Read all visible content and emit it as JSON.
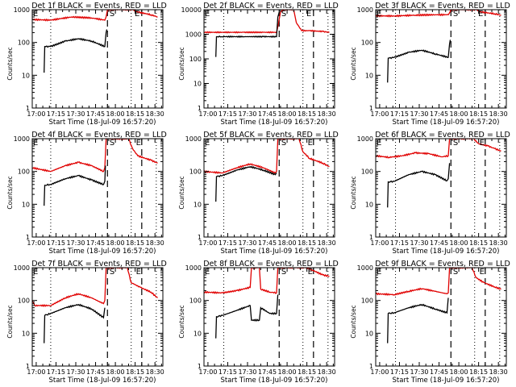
{
  "figure": {
    "start_time_label": "Start Time (18-Jul-09 16:57:20)",
    "ylabel": "Counts/sec",
    "colors": {
      "events": "#000000",
      "lld": "#e00000"
    }
  },
  "chart_data": [
    {
      "type": "line",
      "title": "Det 1f BLACK = Events, RED = LLD",
      "xlabel": "Start Time (18-Jul-09 16:57:20)",
      "ylabel": "Counts/sec",
      "xlim_minutes": [
        0,
        99
      ],
      "ylim": [
        1,
        1000
      ],
      "yscale": "log",
      "xticks": [
        "17:00",
        "17:15",
        "17:30",
        "17:45",
        "18:00",
        "18:15",
        "18:30"
      ],
      "yticks": [
        "1",
        "10",
        "100",
        "1000"
      ],
      "markers": [
        {
          "label": "E",
          "at_min": 0
        },
        {
          "label": "S",
          "at_min": 58
        },
        {
          "label": "E",
          "at_min": 77
        }
      ],
      "dotted_lines_min": [
        14,
        75,
        94
      ],
      "dashed_lines_min": [
        57,
        83
      ],
      "series": [
        {
          "name": "LLD",
          "color": "red",
          "x": [
            0,
            14,
            30,
            45,
            55,
            56,
            57,
            76,
            80,
            90,
            95
          ],
          "y": [
            500,
            480,
            600,
            560,
            480,
            600,
            1000,
            1000,
            850,
            700,
            600
          ]
        },
        {
          "name": "Events",
          "color": "black",
          "x": [
            9,
            9.5,
            14,
            25,
            35,
            45,
            55,
            56,
            56.5
          ],
          "y": [
            12,
            75,
            75,
            110,
            130,
            110,
            75,
            200,
            250
          ]
        }
      ]
    },
    {
      "type": "line",
      "title": "Det 2f BLACK = Events, RED = LLD",
      "xlabel": "Start Time (18-Jul-09 16:57:20)",
      "ylabel": "Counts/sec",
      "xlim_minutes": [
        0,
        99
      ],
      "ylim": [
        1,
        10000
      ],
      "yscale": "log",
      "xticks": [
        "17:00",
        "17:15",
        "17:30",
        "17:45",
        "18:00",
        "18:15",
        "18:30"
      ],
      "yticks": [
        "1",
        "10",
        "100",
        "1000",
        "10000"
      ],
      "markers": [
        {
          "label": "E",
          "at_min": 0
        },
        {
          "label": "S",
          "at_min": 58
        },
        {
          "label": "E",
          "at_min": 77
        }
      ],
      "dotted_lines_min": [
        15,
        75,
        94
      ],
      "dashed_lines_min": [
        57,
        83
      ],
      "series": [
        {
          "name": "LLD",
          "color": "red",
          "x": [
            0,
            14,
            30,
            45,
            55,
            56,
            58,
            60,
            68,
            70,
            74,
            80,
            90,
            95
          ],
          "y": [
            1200,
            1200,
            1200,
            1200,
            1200,
            2000,
            8000,
            10000,
            10000,
            3000,
            1400,
            1400,
            1300,
            1200
          ]
        },
        {
          "name": "Events",
          "color": "black",
          "x": [
            9,
            9.5,
            14,
            30,
            45,
            55,
            56,
            57
          ],
          "y": [
            120,
            800,
            800,
            800,
            800,
            800,
            5000,
            8000
          ]
        }
      ]
    },
    {
      "type": "line",
      "title": "Det 3f BLACK = Events, RED = LLD",
      "xlabel": "Start Time (18-Jul-09 16:57:20)",
      "ylabel": "Counts/sec",
      "xlim_minutes": [
        0,
        99
      ],
      "ylim": [
        1,
        1000
      ],
      "yscale": "log",
      "xticks": [
        "17:00",
        "17:15",
        "17:30",
        "17:45",
        "18:00",
        "18:15",
        "18:30"
      ],
      "yticks": [
        "1",
        "10",
        "100",
        "1000"
      ],
      "markers": [
        {
          "label": "E",
          "at_min": 0
        },
        {
          "label": "S",
          "at_min": 58
        },
        {
          "label": "E",
          "at_min": 77
        }
      ],
      "dotted_lines_min": [
        15,
        75,
        94
      ],
      "dashed_lines_min": [
        57,
        83
      ],
      "series": [
        {
          "name": "LLD",
          "color": "red",
          "x": [
            0,
            14,
            30,
            45,
            55,
            56,
            57,
            76,
            80,
            90,
            95
          ],
          "y": [
            650,
            640,
            680,
            700,
            700,
            800,
            1000,
            1000,
            850,
            750,
            680
          ]
        },
        {
          "name": "Events",
          "color": "black",
          "x": [
            9,
            9.5,
            14,
            25,
            35,
            45,
            55,
            56,
            56.5
          ],
          "y": [
            6,
            33,
            35,
            50,
            58,
            45,
            35,
            90,
            120
          ]
        }
      ]
    },
    {
      "type": "line",
      "title": "Det 4f BLACK = Events, RED = LLD",
      "xlabel": "Start Time (18-Jul-09 16:57:20)",
      "ylabel": "Counts/sec",
      "xlim_minutes": [
        0,
        99
      ],
      "ylim": [
        1,
        1000
      ],
      "yscale": "log",
      "xticks": [
        "17:00",
        "17:15",
        "17:30",
        "17:45",
        "18:00",
        "18:15",
        "18:30"
      ],
      "yticks": [
        "1",
        "10",
        "100",
        "1000"
      ],
      "markers": [
        {
          "label": "E",
          "at_min": 0
        },
        {
          "label": "S",
          "at_min": 58
        },
        {
          "label": "E",
          "at_min": 78
        }
      ],
      "dotted_lines_min": [
        14,
        75,
        94
      ],
      "dashed_lines_min": [
        57,
        83
      ],
      "series": [
        {
          "name": "LLD",
          "color": "red",
          "x": [
            0,
            14,
            25,
            35,
            45,
            54,
            55,
            56,
            73,
            76,
            80,
            90,
            95
          ],
          "y": [
            130,
            100,
            150,
            190,
            150,
            100,
            130,
            1000,
            1000,
            500,
            300,
            220,
            180
          ]
        },
        {
          "name": "Events",
          "color": "black",
          "x": [
            9,
            9.5,
            14,
            25,
            35,
            45,
            54,
            55,
            55.5
          ],
          "y": [
            9,
            38,
            40,
            60,
            75,
            55,
            40,
            50,
            150
          ]
        }
      ]
    },
    {
      "type": "line",
      "title": "Det 5f BLACK = Events, RED = LLD",
      "xlabel": "Start Time (18-Jul-09 16:57:20)",
      "ylabel": "Counts/sec",
      "xlim_minutes": [
        0,
        99
      ],
      "ylim": [
        1,
        1000
      ],
      "yscale": "log",
      "xticks": [
        "17:00",
        "17:15",
        "17:30",
        "17:45",
        "18:00",
        "18:15",
        "18:30"
      ],
      "yticks": [
        "1",
        "10",
        "100",
        "1000"
      ],
      "markers": [
        {
          "label": "E",
          "at_min": 0
        },
        {
          "label": "S",
          "at_min": 58
        },
        {
          "label": "E",
          "at_min": 78
        }
      ],
      "dotted_lines_min": [
        15,
        75,
        94
      ],
      "dashed_lines_min": [
        57,
        83
      ],
      "series": [
        {
          "name": "LLD",
          "color": "red",
          "x": [
            0,
            14,
            25,
            35,
            45,
            54,
            55,
            56,
            72,
            75,
            80,
            90,
            95
          ],
          "y": [
            100,
            90,
            130,
            170,
            130,
            90,
            100,
            1000,
            1000,
            400,
            250,
            180,
            140
          ]
        },
        {
          "name": "Events",
          "color": "black",
          "x": [
            9,
            9.5,
            14,
            25,
            35,
            45,
            54,
            55
          ],
          "y": [
            12,
            70,
            75,
            110,
            140,
            110,
            80,
            90
          ]
        }
      ]
    },
    {
      "type": "line",
      "title": "Det 6f BLACK = Events, RED = LLD",
      "xlabel": "Start Time (18-Jul-09 16:57:20)",
      "ylabel": "Counts/sec",
      "xlim_minutes": [
        0,
        99
      ],
      "ylim": [
        1,
        1000
      ],
      "yscale": "log",
      "xticks": [
        "17:00",
        "17:15",
        "17:30",
        "17:45",
        "18:00",
        "18:15",
        "18:30"
      ],
      "yticks": [
        "1",
        "10",
        "100",
        "1000"
      ],
      "markers": [
        {
          "label": "E",
          "at_min": 0
        },
        {
          "label": "S",
          "at_min": 58
        },
        {
          "label": "E",
          "at_min": 78
        }
      ],
      "dotted_lines_min": [
        15,
        75,
        94
      ],
      "dashed_lines_min": [
        57,
        83
      ],
      "series": [
        {
          "name": "LLD",
          "color": "red",
          "x": [
            0,
            10,
            20,
            30,
            40,
            50,
            55,
            56,
            74,
            78,
            85,
            90,
            95
          ],
          "y": [
            300,
            270,
            300,
            370,
            350,
            280,
            300,
            1000,
            1000,
            700,
            600,
            500,
            420
          ]
        },
        {
          "name": "Events",
          "color": "black",
          "x": [
            9,
            9.5,
            14,
            25,
            35,
            45,
            54,
            55,
            56
          ],
          "y": [
            8,
            48,
            50,
            80,
            100,
            80,
            52,
            60,
            180
          ]
        }
      ]
    },
    {
      "type": "line",
      "title": "Det 7f BLACK = Events, RED = LLD",
      "xlabel": "Start Time (18-Jul-09 16:57:20)",
      "ylabel": "Counts/sec",
      "xlim_minutes": [
        0,
        99
      ],
      "ylim": [
        1,
        1000
      ],
      "yscale": "log",
      "xticks": [
        "17:00",
        "17:15",
        "17:30",
        "17:45",
        "18:00",
        "18:15",
        "18:30"
      ],
      "yticks": [
        "1",
        "10",
        "100",
        "1000"
      ],
      "markers": [
        {
          "label": "E",
          "at_min": 0
        },
        {
          "label": "S",
          "at_min": 58
        },
        {
          "label": "E",
          "at_min": 78
        }
      ],
      "dotted_lines_min": [
        14,
        75,
        94
      ],
      "dashed_lines_min": [
        57,
        83
      ],
      "series": [
        {
          "name": "LLD",
          "color": "red",
          "x": [
            0,
            2,
            14,
            25,
            35,
            45,
            54,
            55,
            56,
            72,
            75,
            82,
            90,
            95
          ],
          "y": [
            100,
            70,
            70,
            120,
            160,
            120,
            80,
            100,
            1000,
            1000,
            350,
            250,
            180,
            120
          ]
        },
        {
          "name": "Events",
          "color": "black",
          "x": [
            9,
            9.5,
            14,
            25,
            35,
            45,
            54,
            55
          ],
          "y": [
            5,
            35,
            40,
            60,
            75,
            55,
            30,
            60
          ]
        }
      ]
    },
    {
      "type": "line",
      "title": "Det 8f BLACK = Events, RED = LLD",
      "xlabel": "Start Time (18-Jul-09 16:57:20)",
      "ylabel": "Counts/sec",
      "xlim_minutes": [
        0,
        99
      ],
      "ylim": [
        1,
        1000
      ],
      "yscale": "log",
      "xticks": [
        "17:00",
        "17:15",
        "17:30",
        "17:45",
        "18:00",
        "18:15",
        "18:30"
      ],
      "yticks": [
        "1",
        "10",
        "100",
        "1000"
      ],
      "markers": [
        {
          "label": "E",
          "at_min": 0
        },
        {
          "label": "S",
          "at_min": 58
        },
        {
          "label": "E",
          "at_min": 78
        }
      ],
      "dotted_lines_min": [
        15,
        75,
        94
      ],
      "dashed_lines_min": [
        57,
        83
      ],
      "series": [
        {
          "name": "LLD",
          "color": "red",
          "x": [
            0,
            14,
            25,
            35,
            36,
            42,
            43,
            50,
            55,
            56,
            78,
            82,
            90,
            95
          ],
          "y": [
            180,
            170,
            200,
            250,
            1000,
            1000,
            220,
            180,
            170,
            1000,
            1000,
            850,
            600,
            550
          ]
        },
        {
          "name": "Events",
          "color": "black",
          "x": [
            9,
            9.5,
            14,
            25,
            35,
            36,
            42,
            43,
            50,
            55,
            56
          ],
          "y": [
            7,
            32,
            35,
            50,
            70,
            25,
            25,
            60,
            40,
            40,
            150
          ]
        }
      ]
    },
    {
      "type": "line",
      "title": "Det 9f BLACK = Events, RED = LLD",
      "xlabel": "Start Time (18-Jul-09 16:57:20)",
      "ylabel": "Counts/sec",
      "xlim_minutes": [
        0,
        99
      ],
      "ylim": [
        1,
        1000
      ],
      "yscale": "log",
      "xticks": [
        "17:00",
        "17:15",
        "17:30",
        "17:45",
        "18:00",
        "18:15",
        "18:30"
      ],
      "yticks": [
        "1",
        "10",
        "100",
        "1000"
      ],
      "markers": [
        {
          "label": "E",
          "at_min": 0
        },
        {
          "label": "S",
          "at_min": 58
        },
        {
          "label": "E",
          "at_min": 78
        }
      ],
      "dotted_lines_min": [
        15,
        75,
        94
      ],
      "dashed_lines_min": [
        57,
        83
      ],
      "series": [
        {
          "name": "LLD",
          "color": "red",
          "x": [
            0,
            14,
            25,
            35,
            45,
            54,
            55,
            56,
            73,
            76,
            82,
            90,
            95
          ],
          "y": [
            160,
            150,
            190,
            230,
            190,
            160,
            170,
            1000,
            1000,
            500,
            350,
            260,
            220
          ]
        },
        {
          "name": "Events",
          "color": "black",
          "x": [
            9,
            9.5,
            14,
            25,
            35,
            45,
            54,
            55
          ],
          "y": [
            5,
            40,
            42,
            60,
            75,
            55,
            42,
            120
          ]
        }
      ]
    }
  ]
}
